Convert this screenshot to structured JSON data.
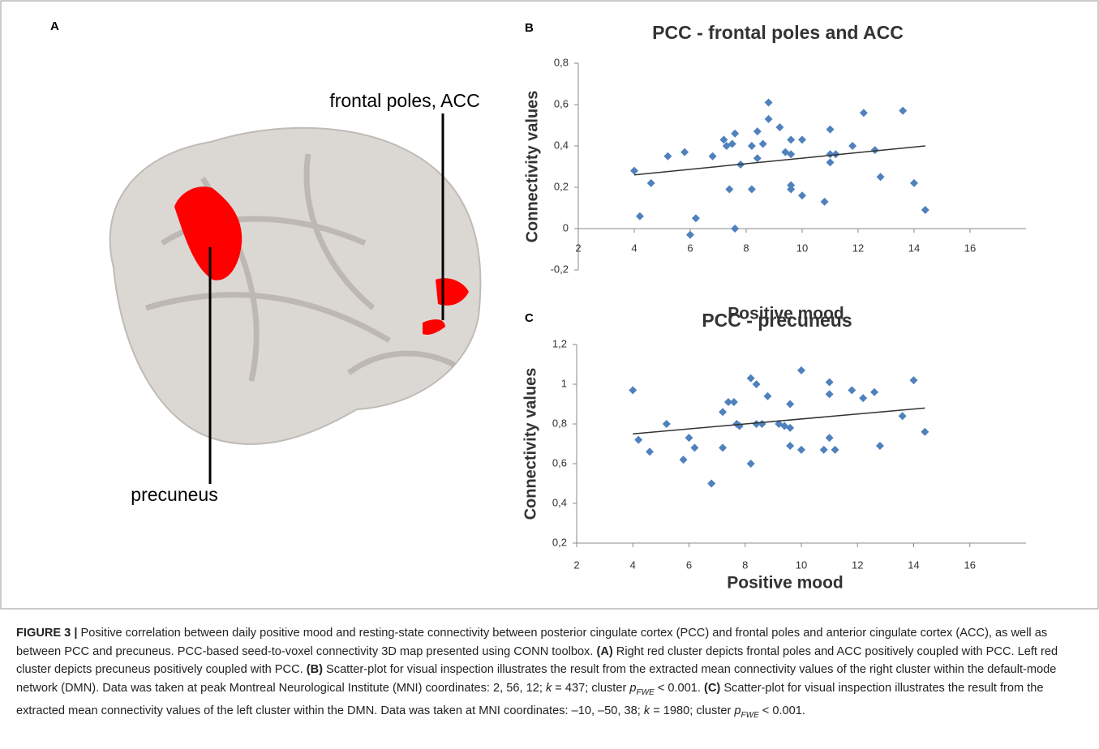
{
  "panel_a": {
    "letter": "A",
    "labels": [
      "frontal poles, ACC",
      "precuneus"
    ]
  },
  "chart_data": [
    {
      "type": "scatter",
      "panel": "B",
      "title": "PCC - frontal poles and ACC",
      "xlabel": "Positive mood",
      "ylabel": "Connectivity  values",
      "xlim": [
        2,
        18
      ],
      "xticks": [
        2,
        4,
        6,
        8,
        10,
        12,
        14,
        16
      ],
      "ylim": [
        -0.2,
        0.8
      ],
      "yticks": [
        {
          "value": -0.2,
          "label": "-0,2"
        },
        0,
        {
          "value": 0.2,
          "label": "0,2"
        },
        {
          "value": 0.4,
          "label": "0,4"
        },
        {
          "value": 0.6,
          "label": "0,6"
        },
        {
          "value": 0.8,
          "label": "0,8"
        }
      ],
      "color": "#4f81bd",
      "x": [
        4.0,
        4.2,
        4.6,
        5.2,
        5.8,
        6.0,
        6.2,
        6.8,
        7.2,
        7.3,
        7.4,
        7.5,
        7.6,
        7.6,
        7.8,
        8.2,
        8.2,
        8.4,
        8.4,
        8.6,
        8.8,
        8.8,
        9.2,
        9.4,
        9.6,
        9.6,
        9.6,
        9.6,
        10.0,
        10.0,
        10.8,
        11.0,
        11.0,
        11.0,
        11.2,
        11.8,
        12.2,
        12.6,
        12.8,
        13.6,
        14.0,
        14.4
      ],
      "values": [
        0.28,
        0.06,
        0.22,
        0.35,
        0.37,
        -0.03,
        0.05,
        0.35,
        0.43,
        0.4,
        0.19,
        0.41,
        0.0,
        0.46,
        0.31,
        0.19,
        0.4,
        0.34,
        0.47,
        0.41,
        0.53,
        0.61,
        0.49,
        0.37,
        0.19,
        0.21,
        0.36,
        0.43,
        0.16,
        0.43,
        0.13,
        0.32,
        0.36,
        0.48,
        0.36,
        0.4,
        0.56,
        0.38,
        0.25,
        0.57,
        0.22,
        0.09
      ],
      "trendline": {
        "x": [
          4,
          14.4
        ],
        "y": [
          0.26,
          0.4
        ]
      }
    },
    {
      "type": "scatter",
      "panel": "C",
      "title": "PCC - precuneus",
      "xlabel": "Positive mood",
      "ylabel": "Connectivity  values",
      "xlim": [
        2,
        18
      ],
      "xticks": [
        2,
        4,
        6,
        8,
        10,
        12,
        14,
        16
      ],
      "ylim": [
        0.2,
        1.2
      ],
      "yticks": [
        {
          "value": 0.2,
          "label": "0,2"
        },
        {
          "value": 0.4,
          "label": "0,4"
        },
        {
          "value": 0.6,
          "label": "0,6"
        },
        {
          "value": 0.8,
          "label": "0,8"
        },
        1,
        {
          "value": 1.2,
          "label": "1,2"
        }
      ],
      "color": "#4f81bd",
      "x": [
        4.0,
        4.2,
        4.6,
        5.2,
        5.8,
        6.0,
        6.2,
        6.8,
        7.2,
        7.2,
        7.4,
        7.6,
        7.7,
        7.8,
        8.2,
        8.2,
        8.4,
        8.4,
        8.6,
        8.8,
        9.2,
        9.4,
        9.6,
        9.6,
        9.6,
        10.0,
        10.0,
        10.8,
        11.0,
        11.0,
        11.0,
        11.2,
        11.8,
        12.2,
        12.6,
        12.8,
        13.6,
        14.0,
        14.4
      ],
      "values": [
        0.97,
        0.72,
        0.66,
        0.8,
        0.62,
        0.73,
        0.68,
        0.5,
        0.68,
        0.86,
        0.91,
        0.91,
        0.8,
        0.79,
        0.6,
        1.03,
        1.0,
        0.8,
        0.8,
        0.94,
        0.8,
        0.79,
        0.78,
        0.69,
        0.9,
        0.67,
        1.07,
        0.67,
        0.73,
        0.95,
        1.01,
        0.67,
        0.97,
        0.93,
        0.96,
        0.69,
        0.84,
        1.02,
        0.76
      ],
      "trendline": {
        "x": [
          4,
          14.4
        ],
        "y": [
          0.75,
          0.88
        ]
      }
    }
  ],
  "caption": {
    "segments": [
      "FIGURE 3 |",
      " Positive correlation between daily positive mood and resting-state connectivity between posterior cingulate cortex (PCC) and frontal poles and anterior cingulate cortex (ACC), as well as between PCC and precuneus. PCC-based seed-to-voxel connectivity 3D map presented using CONN toolbox. ",
      "(A)",
      " Right red cluster depicts frontal poles and ACC positively coupled with PCC. Left red cluster depicts precuneus positively coupled with PCC. ",
      "(B)",
      " Scatter-plot for visual inspection illustrates the result from the extracted mean connectivity values of the right cluster within the default-mode network (DMN). Data was taken at peak Montreal Neurological Institute (MNI) coordinates: 2, 56, 12; ",
      "k",
      " = 437; cluster ",
      "p",
      "FWE",
      " < 0.001. ",
      "(C)",
      " Scatter-plot for visual inspection illustrates the result from the extracted mean connectivity values of the left cluster within the DMN. Data was taken at MNI coordinates: –10, –50, 38; ",
      "k",
      " = 1980; cluster ",
      "p",
      "FWE",
      " < 0.001."
    ]
  }
}
